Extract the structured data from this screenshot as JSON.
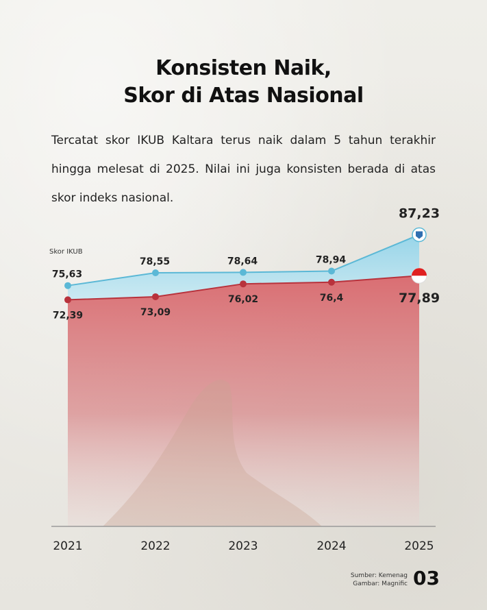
{
  "title": {
    "line1": "Konsisten Naik,",
    "line2": "Skor di Atas Nasional"
  },
  "paragraph": "Tercatat skor IKUB Kaltara terus naik dalam 5 tahun terakhir hingga melesat di 2025. Nilai ini juga konsisten berada di atas skor indeks nasional.",
  "chart_data": {
    "type": "area",
    "label": "Skor IKUB",
    "x": [
      "2021",
      "2022",
      "2023",
      "2024",
      "2025"
    ],
    "series": [
      {
        "values": [
          75.63,
          78.55,
          78.64,
          78.94,
          87.23
        ],
        "value_labels": [
          "75,63",
          "78,55",
          "78,64",
          "78,94",
          "87,23"
        ],
        "color": "#5bb8d6"
      },
      {
        "values": [
          72.39,
          73.09,
          76.02,
          76.4,
          77.89
        ],
        "value_labels": [
          "72,39",
          "73,09",
          "76,02",
          "76,4",
          "77,89"
        ],
        "color": "#b8323c"
      }
    ],
    "icons": [
      "kaltara-emblem-icon",
      "indonesia-flag-icon"
    ]
  },
  "footer": {
    "source": "Sumber: Kemenag",
    "image_credit": "Gambar: Magnific",
    "page_number": "03"
  }
}
